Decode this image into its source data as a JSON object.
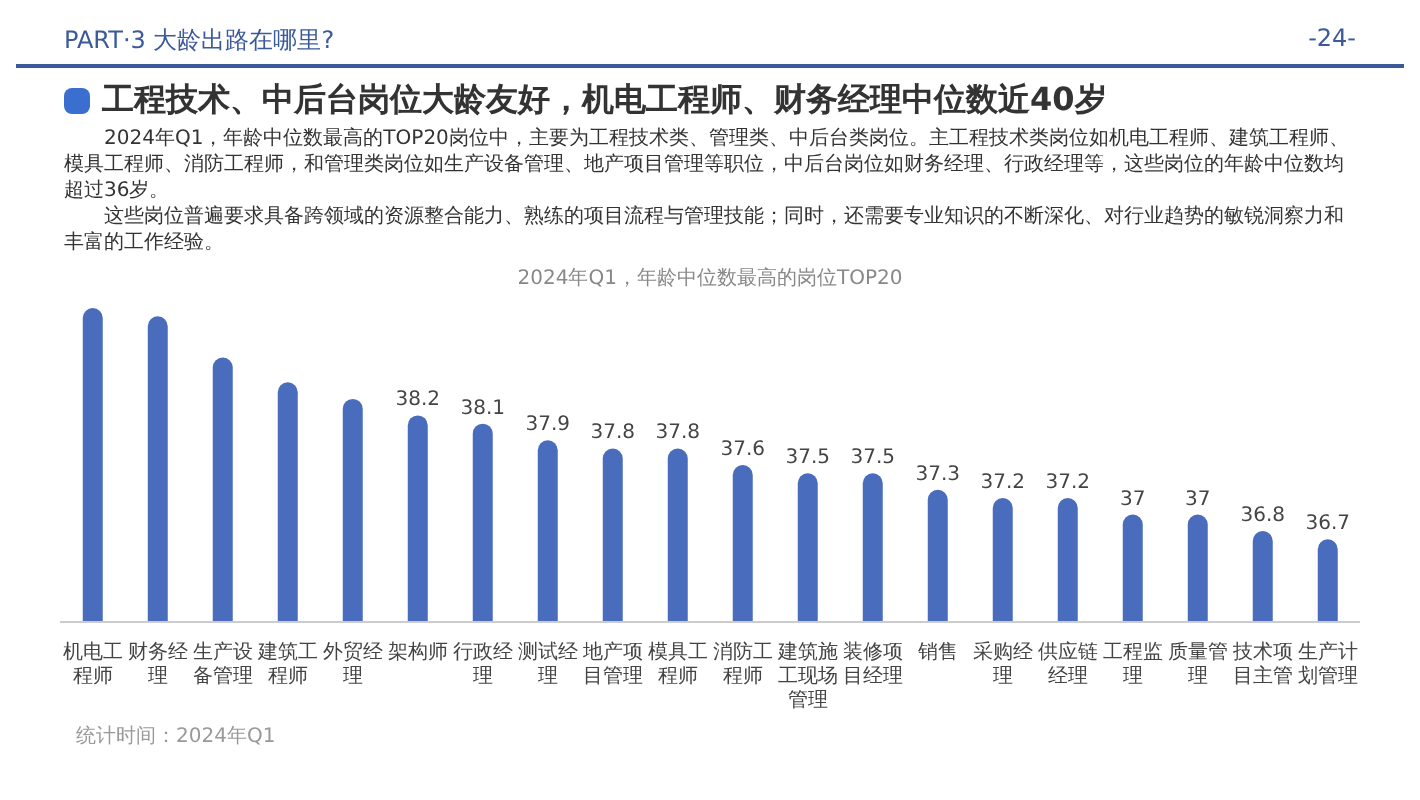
{
  "chart_data": {
    "type": "bar",
    "title": "工程技术、中后台岗位大龄友好，机电工程师、财务经理中位数近40岁",
    "subtitle": "2024年Q1，年龄中位数最高的岗位TOP20",
    "annotations": [
      "PART·3  大龄出路在哪里?",
      "-24-",
      "2024年Q1，年龄中位数最高的TOP20岗位中，主要为工程技术类、管理类、中后台类岗位。主工程技术类岗位如机电工程师、建筑工程师、模具工程师、消防工程师，和管理类岗位如生产设备管理、地产项目管理等职位，中后台岗位如财务经理、行政经理等，这些岗位的年龄中位数均超过36岁。",
      "这些岗位普遍要求具备跨领域的资源整合能力、熟练的项目流程与管理技能；同时，还需要专业知识的不断深化、对行业趋势的敏锐洞察力和丰富的工作经验。",
      "统计时间：2024年Q1"
    ],
    "categories": [
      "机电工程师",
      "财务经理",
      "生产设备管理",
      "建筑工程师",
      "外贸经理",
      "架构师",
      "行政经理",
      "测试经理",
      "地产项目管理",
      "模具工程师",
      "消防工程师",
      "建筑施工现场管理",
      "装修项目经理",
      "销售",
      "采购经理",
      "供应链经理",
      "工程监理",
      "质量管理",
      "技术项目主管",
      "生产计划管理"
    ],
    "values": [
      39.5,
      39.4,
      38.9,
      38.6,
      38.4,
      38.2,
      38.1,
      37.9,
      37.8,
      37.8,
      37.6,
      37.5,
      37.5,
      37.3,
      37.2,
      37.2,
      37,
      37,
      36.8,
      36.7
    ],
    "value_labels": [
      null,
      null,
      null,
      null,
      null,
      "38.2",
      "38.1",
      "37.9",
      "37.8",
      "37.8",
      "37.6",
      "37.5",
      "37.5",
      "37.3",
      "37.2",
      "37.2",
      "37",
      "37",
      "36.8",
      "36.7"
    ],
    "color": "#4a6cbd",
    "ylim": [
      35.7,
      39.5
    ]
  }
}
